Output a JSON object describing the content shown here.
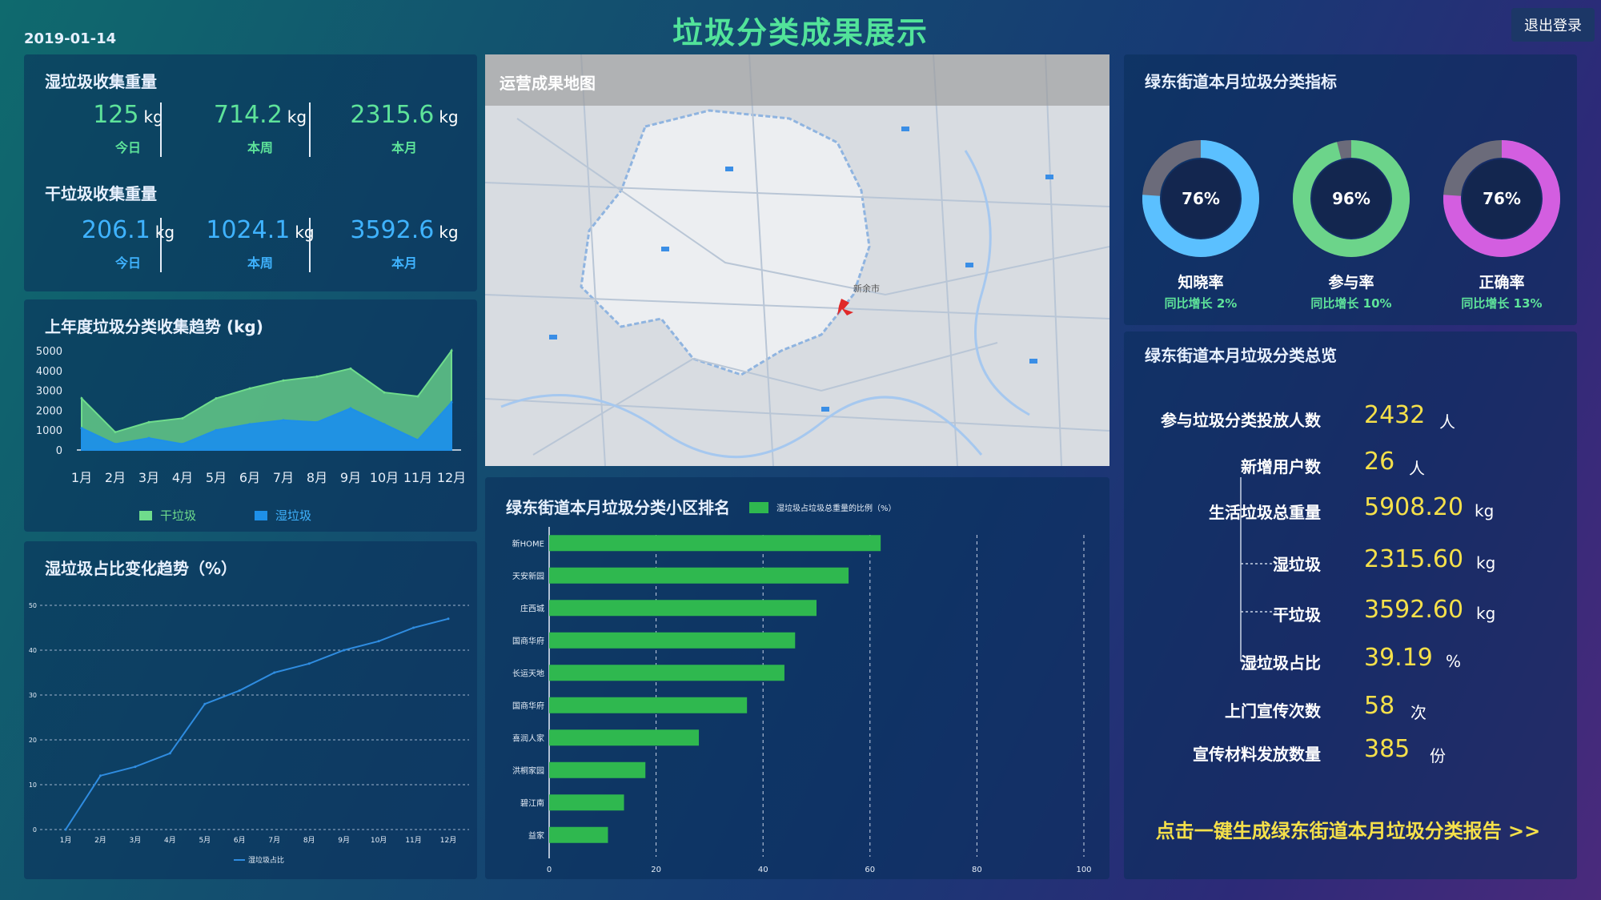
{
  "header": {
    "date": "2019-01-14",
    "title": "垃圾分类成果展示",
    "logout_label": "退出登录"
  },
  "weights": {
    "wet_title": "湿垃圾收集重量",
    "dry_title": "干垃圾收集重量",
    "unit": "kg",
    "wet": [
      {
        "value": "125",
        "label": "今日"
      },
      {
        "value": "714.2",
        "label": "本周"
      },
      {
        "value": "2315.6",
        "label": "本月"
      }
    ],
    "dry": [
      {
        "value": "206.1",
        "label": "今日"
      },
      {
        "value": "1024.1",
        "label": "本周"
      },
      {
        "value": "3592.6",
        "label": "本月"
      }
    ]
  },
  "trend": {
    "title": "上年度垃圾分类收集趋势 (kg)",
    "legend_dry": "干垃圾",
    "legend_wet": "湿垃圾",
    "colors": {
      "dry": "#6fdc8c",
      "wet": "#1e90e8"
    }
  },
  "ratio": {
    "title": "湿垃圾占比变化趋势（%）",
    "legend": "湿垃圾占比",
    "color": "#2f8ce0"
  },
  "map": {
    "title": "运营成果地图",
    "city_label": "新余市"
  },
  "ranking": {
    "title": "绿东街道本月垃圾分类小区排名",
    "legend": "湿垃圾占垃圾总重量的比例（%）",
    "color": "#2fb84f"
  },
  "indicators": {
    "title": "绿东街道本月垃圾分类指标",
    "items": [
      {
        "value": "76%",
        "fraction": 0.76,
        "label": "知晓率",
        "sub": "同比增长 2%",
        "color": "#5bc0ff"
      },
      {
        "value": "96%",
        "fraction": 0.96,
        "label": "参与率",
        "sub": "同比增长 10%",
        "color": "#6cd48a"
      },
      {
        "value": "76%",
        "fraction": 0.76,
        "label": "正确率",
        "sub": "同比增长 13%",
        "color": "#d35ee0"
      }
    ],
    "rest_color": "#6b6b7a"
  },
  "summary": {
    "title": "绿东街道本月垃圾分类总览",
    "rows": [
      {
        "label": "参与垃圾分类投放人数",
        "value": "2432",
        "unit": "人"
      },
      {
        "label": "新增用户数",
        "value": "26",
        "unit": "人"
      },
      {
        "label": "生活垃圾总重量",
        "value": "5908.20",
        "unit": "kg"
      },
      {
        "label": "湿垃圾",
        "value": "2315.60",
        "unit": "kg"
      },
      {
        "label": "干垃圾",
        "value": "3592.60",
        "unit": "kg"
      },
      {
        "label": "湿垃圾占比",
        "value": "39.19",
        "unit": "%"
      },
      {
        "label": "上门宣传次数",
        "value": "58",
        "unit": "次"
      },
      {
        "label": "宣传材料发放数量",
        "value": "385",
        "unit": "份"
      }
    ],
    "report_link": "点击一键生成绿东街道本月垃圾分类报告 >>"
  },
  "chart_data": [
    {
      "type": "area",
      "title": "上年度垃圾分类收集趋势 (kg)",
      "categories": [
        "1月",
        "2月",
        "3月",
        "4月",
        "5月",
        "6月",
        "7月",
        "8月",
        "9月",
        "10月",
        "11月",
        "12月"
      ],
      "ylim": [
        0,
        5000
      ],
      "yticks": [
        0,
        1000,
        2000,
        3000,
        4000,
        5000
      ],
      "series": [
        {
          "name": "干垃圾",
          "values": [
            2600,
            900,
            1400,
            1600,
            2600,
            3100,
            3500,
            3700,
            4100,
            2900,
            2700,
            5000
          ]
        },
        {
          "name": "湿垃圾",
          "values": [
            1100,
            300,
            600,
            300,
            1000,
            1300,
            1500,
            1400,
            2100,
            1300,
            500,
            2400
          ]
        }
      ],
      "legend": "bottom",
      "grid": false
    },
    {
      "type": "line",
      "title": "湿垃圾占比变化趋势（%）",
      "categories": [
        "1月",
        "2月",
        "3月",
        "4月",
        "5月",
        "6月",
        "7月",
        "8月",
        "9月",
        "10月",
        "11月",
        "12月"
      ],
      "ylim": [
        0,
        50
      ],
      "yticks": [
        0,
        10,
        20,
        30,
        40,
        50
      ],
      "series": [
        {
          "name": "湿垃圾占比",
          "values": [
            0,
            12,
            14,
            17,
            28,
            31,
            35,
            37,
            40,
            42,
            45,
            47
          ]
        }
      ],
      "legend": "bottom",
      "grid": true
    },
    {
      "type": "bar",
      "orientation": "horizontal",
      "title": "绿东街道本月垃圾分类小区排名",
      "categories": [
        "新HOME",
        "天安新园",
        "庄西城",
        "国商华府",
        "长运天地",
        "国商华府",
        "喜润人家",
        "洪桐家园",
        "碧江南",
        "益家"
      ],
      "series": [
        {
          "name": "湿垃圾占垃圾总重量的比例（%）",
          "values": [
            62,
            56,
            50,
            46,
            44,
            37,
            28,
            18,
            14,
            11
          ]
        }
      ],
      "xlim": [
        0,
        100
      ],
      "xticks": [
        0,
        20,
        40,
        60,
        80,
        100
      ],
      "legend": "top",
      "grid": true
    }
  ]
}
